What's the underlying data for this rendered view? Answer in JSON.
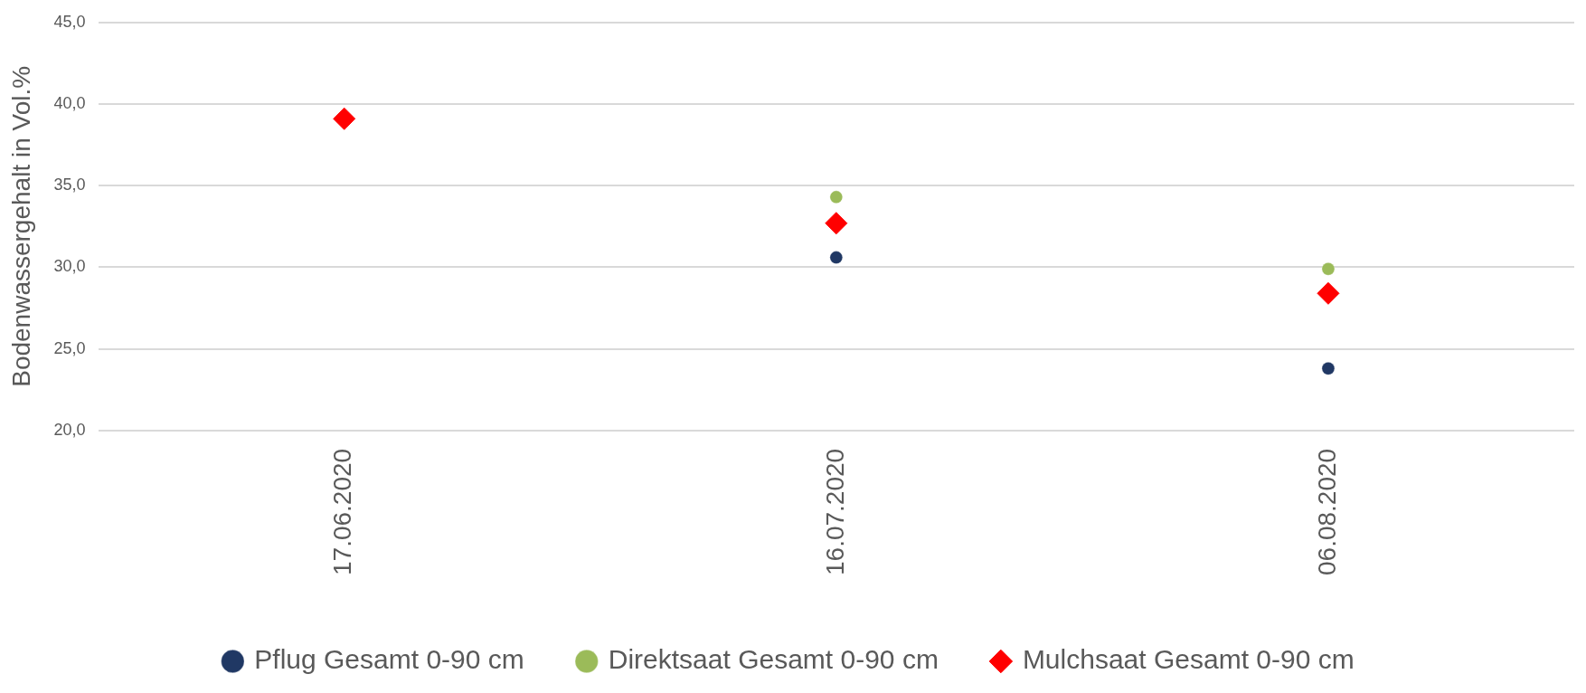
{
  "chart_data": {
    "type": "scatter",
    "ylabel": "Bodenwassergehalt in Vol.%",
    "categories": [
      "17.06.2020",
      "16.07.2020",
      "06.08.2020"
    ],
    "series": [
      {
        "name": "Pflug Gesamt 0-90 cm",
        "color": "#203864",
        "marker": "circle",
        "values": [
          null,
          30.6,
          23.8
        ]
      },
      {
        "name": "Direktsaat Gesamt 0-90 cm",
        "color": "#9bbb59",
        "marker": "circle",
        "values": [
          null,
          34.3,
          29.9
        ]
      },
      {
        "name": "Mulchsaat Gesamt 0-90 cm",
        "color": "#ff0000",
        "marker": "diamond",
        "values": [
          39.1,
          32.7,
          28.4
        ]
      }
    ],
    "ylim": [
      20,
      45
    ],
    "yticks": [
      {
        "value": 20,
        "label": "20,0"
      },
      {
        "value": 25,
        "label": "25,0"
      },
      {
        "value": 30,
        "label": "30,0"
      },
      {
        "value": 35,
        "label": "35,0"
      },
      {
        "value": 40,
        "label": "40,0"
      },
      {
        "value": 45,
        "label": "45,0"
      }
    ],
    "grid": "y",
    "legend": "bottom"
  }
}
